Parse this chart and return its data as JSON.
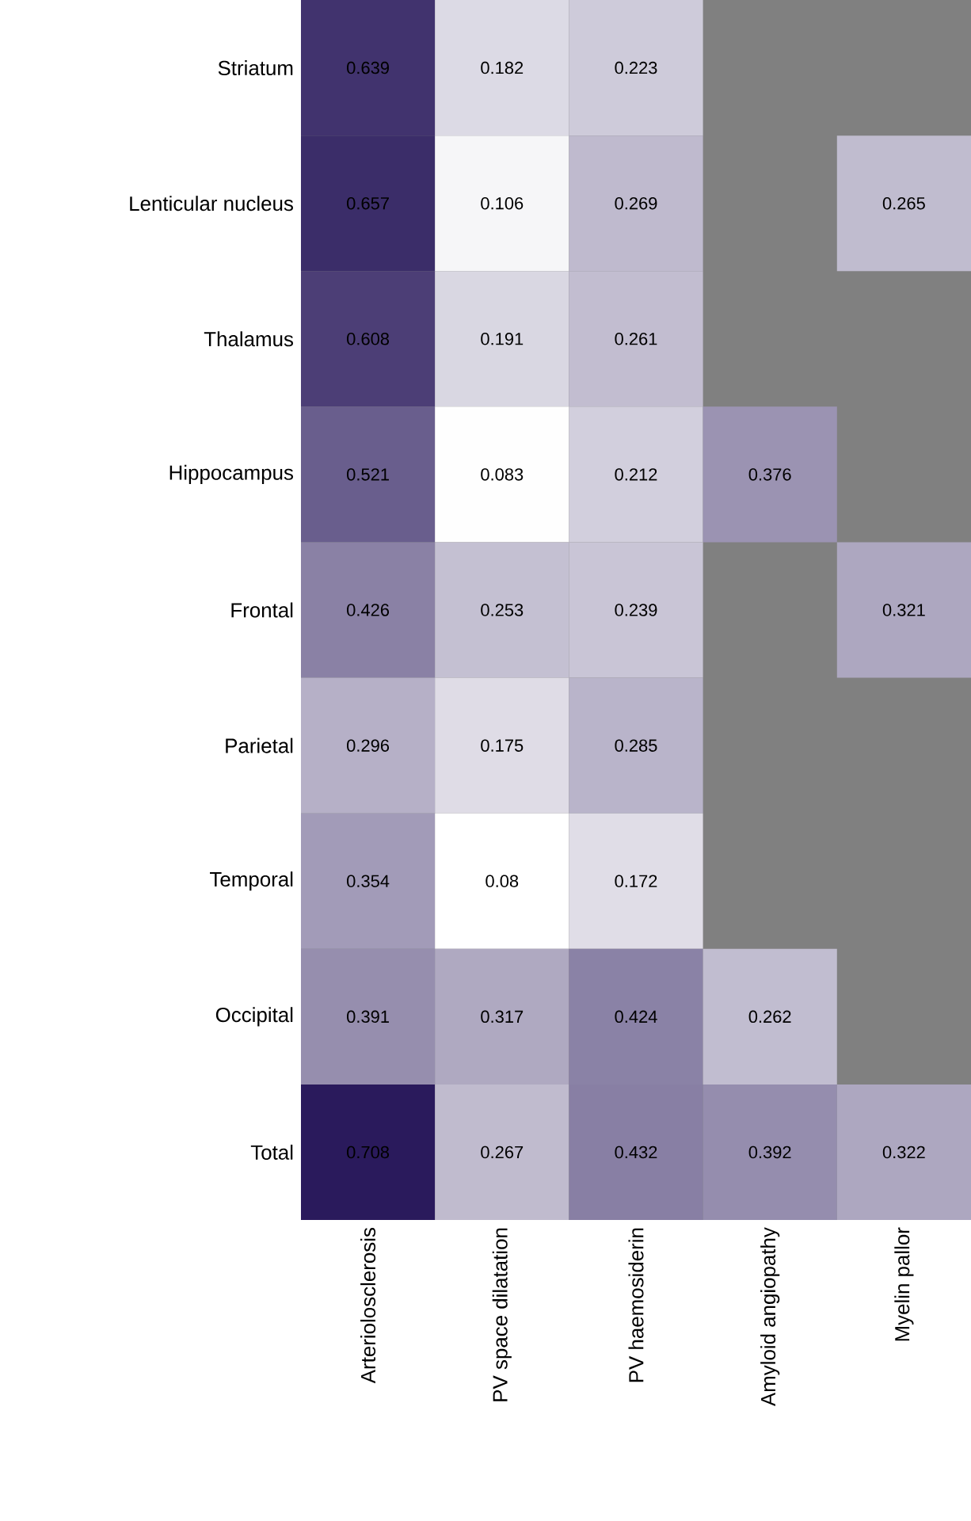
{
  "chart_data": {
    "type": "heatmap",
    "categories": [
      "Arteriolosclerosis",
      "PV space dilatation",
      "PV haemosiderin",
      "Amyloid angiopathy",
      "Myelin pallor"
    ],
    "y_categories": [
      "Striatum",
      "Lenticular nucleus",
      "Thalamus",
      "Hippocampus",
      "Frontal",
      "Parietal",
      "Temporal",
      "Occipital",
      "Total"
    ],
    "cells": [
      [
        0.639,
        0.182,
        0.223,
        null,
        null
      ],
      [
        0.657,
        0.106,
        0.269,
        null,
        0.265
      ],
      [
        0.608,
        0.191,
        0.261,
        null,
        null
      ],
      [
        0.521,
        0.083,
        0.212,
        0.376,
        null
      ],
      [
        0.426,
        0.253,
        0.239,
        null,
        0.321
      ],
      [
        0.296,
        0.175,
        0.285,
        null,
        null
      ],
      [
        0.354,
        0.08,
        0.172,
        null,
        null
      ],
      [
        0.391,
        0.317,
        0.424,
        0.262,
        null
      ],
      [
        0.708,
        0.267,
        0.432,
        0.392,
        0.322
      ]
    ],
    "data_labels": true
  }
}
